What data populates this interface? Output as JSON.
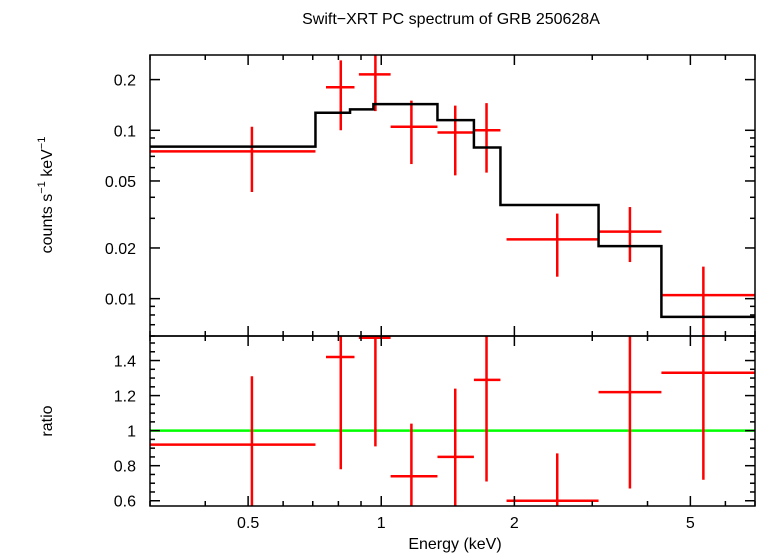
{
  "chart_data": {
    "type": "line",
    "title": "Swift−XRT PC spectrum of GRB 250628A",
    "xlabel": "Energy (keV)",
    "x_scale": "log",
    "xlim": [
      0.3,
      7.0
    ],
    "x_ticks": [
      0.5,
      1,
      2,
      5
    ],
    "x_tick_labels": [
      "0.5",
      "1",
      "2",
      "5"
    ],
    "colors": {
      "data": "#ff0000",
      "model": "#000000",
      "unity": "#00ff00"
    },
    "panels": [
      {
        "name": "spectrum",
        "ylabel_parts": [
          "counts s",
          "−1",
          " keV",
          "−1"
        ],
        "y_scale": "log",
        "ylim": [
          0.006,
          0.28
        ],
        "y_ticks": [
          0.01,
          0.02,
          0.05,
          0.1,
          0.2
        ],
        "y_tick_labels": [
          "0.01",
          "0.02",
          "0.05",
          "0.1",
          "0.2"
        ],
        "series": [
          {
            "kind": "data",
            "points": [
              {
                "xlo": 0.3,
                "xhi": 0.71,
                "x": 0.51,
                "y": 0.075,
                "ylo": 0.043,
                "yhi": 0.105
              },
              {
                "xlo": 0.75,
                "xhi": 0.87,
                "x": 0.81,
                "y": 0.18,
                "ylo": 0.1,
                "yhi": 0.26
              },
              {
                "xlo": 0.89,
                "xhi": 1.05,
                "x": 0.97,
                "y": 0.215,
                "ylo": 0.13,
                "yhi": 0.3
              },
              {
                "xlo": 1.05,
                "xhi": 1.34,
                "x": 1.17,
                "y": 0.105,
                "ylo": 0.063,
                "yhi": 0.15
              },
              {
                "xlo": 1.34,
                "xhi": 1.62,
                "x": 1.47,
                "y": 0.097,
                "ylo": 0.054,
                "yhi": 0.14
              },
              {
                "xlo": 1.62,
                "xhi": 1.86,
                "x": 1.73,
                "y": 0.1,
                "ylo": 0.056,
                "yhi": 0.145
              },
              {
                "xlo": 1.92,
                "xhi": 3.1,
                "x": 2.5,
                "y": 0.0225,
                "ylo": 0.0135,
                "yhi": 0.032
              },
              {
                "xlo": 3.1,
                "xhi": 4.3,
                "x": 3.65,
                "y": 0.025,
                "ylo": 0.0165,
                "yhi": 0.035
              },
              {
                "xlo": 4.3,
                "xhi": 7.0,
                "x": 5.35,
                "y": 0.0105,
                "ylo": 0.006,
                "yhi": 0.0155
              }
            ]
          },
          {
            "kind": "model",
            "steps": [
              {
                "xlo": 0.3,
                "xhi": 0.71,
                "y": 0.08
              },
              {
                "xlo": 0.71,
                "xhi": 0.85,
                "y": 0.127
              },
              {
                "xlo": 0.85,
                "xhi": 0.96,
                "y": 0.133
              },
              {
                "xlo": 0.96,
                "xhi": 1.34,
                "y": 0.143
              },
              {
                "xlo": 1.34,
                "xhi": 1.62,
                "y": 0.115
              },
              {
                "xlo": 1.62,
                "xhi": 1.86,
                "y": 0.079
              },
              {
                "xlo": 1.86,
                "xhi": 3.1,
                "y": 0.036
              },
              {
                "xlo": 3.1,
                "xhi": 4.3,
                "y": 0.0205
              },
              {
                "xlo": 4.3,
                "xhi": 7.0,
                "y": 0.0078
              }
            ]
          }
        ]
      },
      {
        "name": "ratio",
        "ylabel": "ratio",
        "y_scale": "linear",
        "ylim": [
          0.57,
          1.54
        ],
        "y_ticks": [
          0.6,
          0.8,
          1,
          1.2,
          1.4
        ],
        "y_tick_labels": [
          "0.6",
          "0.8",
          "1",
          "1.2",
          "1.4"
        ],
        "reference_line": 1,
        "series": [
          {
            "kind": "data",
            "points": [
              {
                "xlo": 0.3,
                "xhi": 0.71,
                "x": 0.51,
                "y": 0.92,
                "ylo": 0.56,
                "yhi": 1.31
              },
              {
                "xlo": 0.75,
                "xhi": 0.87,
                "x": 0.81,
                "y": 1.42,
                "ylo": 0.78,
                "yhi": 2.0
              },
              {
                "xlo": 0.89,
                "xhi": 1.05,
                "x": 0.97,
                "y": 1.53,
                "ylo": 0.91,
                "yhi": 2.0
              },
              {
                "xlo": 1.05,
                "xhi": 1.34,
                "x": 1.17,
                "y": 0.74,
                "ylo": 0.45,
                "yhi": 1.04
              },
              {
                "xlo": 1.34,
                "xhi": 1.62,
                "x": 1.47,
                "y": 0.85,
                "ylo": 0.45,
                "yhi": 1.24
              },
              {
                "xlo": 1.62,
                "xhi": 1.86,
                "x": 1.73,
                "y": 1.29,
                "ylo": 0.71,
                "yhi": 1.93
              },
              {
                "xlo": 1.92,
                "xhi": 3.1,
                "x": 2.5,
                "y": 0.6,
                "ylo": 0.35,
                "yhi": 0.87
              },
              {
                "xlo": 3.1,
                "xhi": 4.3,
                "x": 3.65,
                "y": 1.22,
                "ylo": 0.67,
                "yhi": 1.82
              },
              {
                "xlo": 4.3,
                "xhi": 7.0,
                "x": 5.35,
                "y": 1.33,
                "ylo": 0.72,
                "yhi": 1.95
              }
            ]
          }
        ]
      }
    ]
  }
}
